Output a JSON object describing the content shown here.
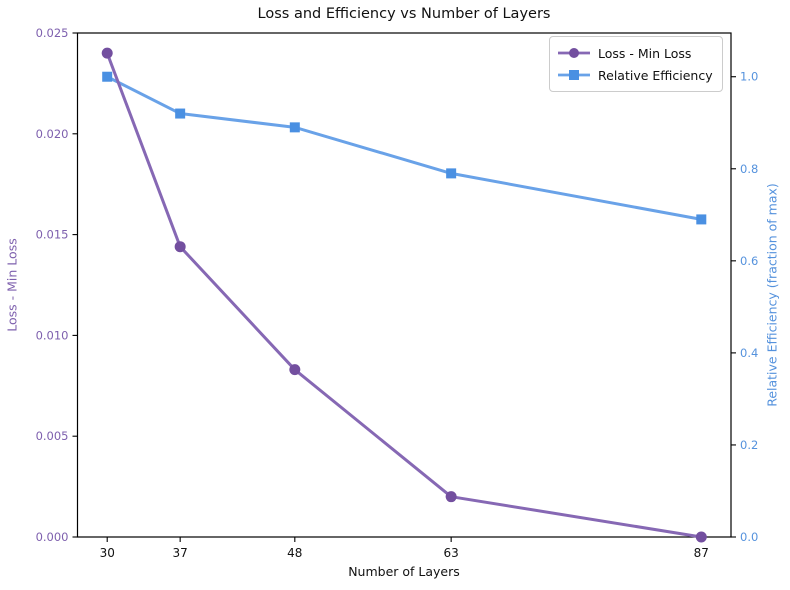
{
  "figure": {
    "title": "Loss and Efficiency vs Number of Layers",
    "xlabel": "Number of Layers",
    "ylabel_left": "Loss - Min Loss",
    "ylabel_right": "Relative Efficiency (fraction of max)"
  },
  "chart_data": {
    "type": "line",
    "title": "Loss and Efficiency vs Number of Layers",
    "xlabel": "Number of Layers",
    "x": [
      30,
      37,
      48,
      63,
      87
    ],
    "x_tick_labels": [
      "30",
      "37",
      "48",
      "63",
      "87"
    ],
    "xlim": [
      27.15,
      89.85
    ],
    "grid": false,
    "legend_position": "upper right",
    "series": [
      {
        "name": "Relative Efficiency",
        "axis": "right",
        "marker": "square",
        "values": [
          1.0,
          0.92,
          0.89,
          0.79,
          0.69
        ],
        "line_color": "#69a2e8",
        "marker_color": "#4a90e2"
      },
      {
        "name": "Loss - Min Loss",
        "axis": "left",
        "marker": "circle",
        "values": [
          0.024,
          0.0144,
          0.0083,
          0.002,
          0.0
        ],
        "line_color": "#8668b4",
        "marker_color": "#734f9f"
      }
    ],
    "left_axis": {
      "label": "Loss - Min Loss",
      "ticks": [
        "0.000",
        "0.005",
        "0.010",
        "0.015",
        "0.020",
        "0.025"
      ],
      "tick_values": [
        0,
        0.005,
        0.01,
        0.015,
        0.02,
        0.025
      ],
      "lim": [
        0,
        0.025
      ],
      "color": "#7e60ae"
    },
    "right_axis": {
      "label": "Relative Efficiency (fraction of max)",
      "ticks": [
        "0.0",
        "0.2",
        "0.4",
        "0.6",
        "0.8",
        "1.0"
      ],
      "tick_values": [
        0,
        0.2,
        0.4,
        0.6,
        0.8,
        1.0
      ],
      "lim": [
        0,
        1.095
      ],
      "color": "#5592dd"
    },
    "legend": [
      "Loss - Min Loss",
      "Relative Efficiency"
    ]
  }
}
